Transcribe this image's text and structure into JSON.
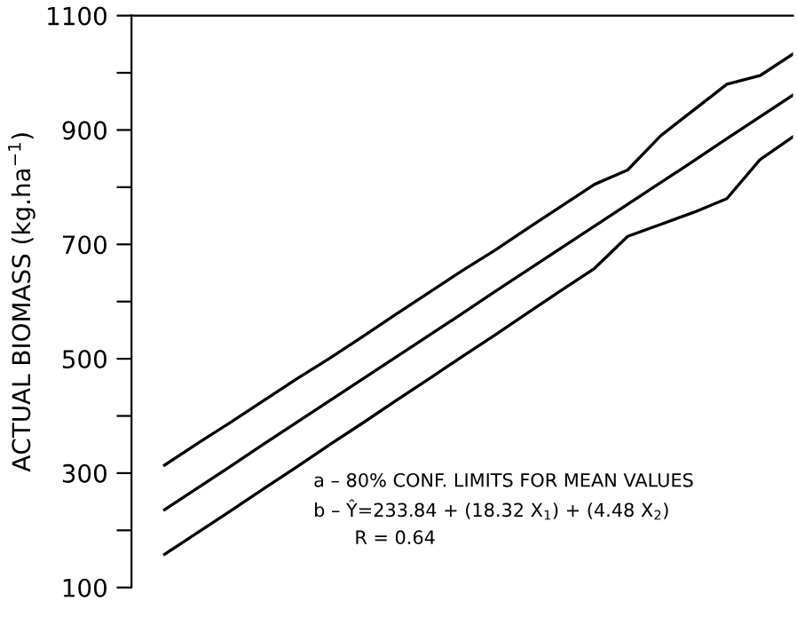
{
  "chart_data": {
    "type": "line",
    "ylabel": "ACTUAL BIOMASS (kg.ha$^{−1}$)",
    "categories": [
      null,
      null,
      null,
      null,
      null,
      null,
      null,
      null,
      null,
      null,
      null,
      null,
      null,
      null,
      null,
      null,
      null,
      null,
      null,
      null
    ],
    "ylim": [
      100,
      1100
    ],
    "yticks": [
      100,
      {
        "value": 200,
        "label": null
      },
      300,
      {
        "value": 400,
        "label": null
      },
      500,
      {
        "value": 600,
        "label": null
      },
      700,
      {
        "value": 800,
        "label": null
      },
      900,
      {
        "value": 1000,
        "label": null
      },
      1100
    ],
    "series": [
      {
        "color": "#000000",
        "values": [
          314,
          352,
          389,
          427,
          465,
          501,
          539,
          578,
          616,
          654,
          690,
          729,
          767,
          805,
          830,
          890,
          935,
          980,
          995,
          1033
        ]
      },
      {
        "color": "#000000",
        "values": [
          236,
          274,
          312,
          351,
          389,
          427,
          465,
          503,
          541,
          579,
          618,
          656,
          694,
          732,
          770,
          808,
          846,
          885,
          923,
          961
        ]
      },
      {
        "color": "#000000",
        "values": [
          158,
          196,
          234,
          273,
          311,
          350,
          388,
          427,
          465,
          504,
          542,
          581,
          620,
          658,
          714,
          735,
          756,
          780,
          848,
          888
        ]
      }
    ],
    "annotations": [
      "a – 80% CONF. LIMITS FOR MEAN VALUES",
      "b – Ŷ=233.84 + (18.32 X$_{1}$) + (4.48 X$_{2}$)",
      "R = 0.64"
    ]
  }
}
